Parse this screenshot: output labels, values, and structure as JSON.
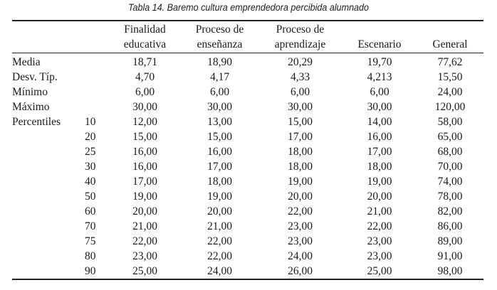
{
  "caption": "Tabla 14. Baremo cultura emprendedora percibida alumnado",
  "columns": [
    {
      "line1": "Finalidad",
      "line2": "educativa"
    },
    {
      "line1": "Proceso de",
      "line2": "enseñanza"
    },
    {
      "line1": "Proceso de",
      "line2": "aprendizaje"
    },
    {
      "line1": "",
      "line2": "Escenario"
    },
    {
      "line1": "",
      "line2": "General"
    }
  ],
  "rows": [
    {
      "label": "Media",
      "pct": "",
      "values": [
        "18,71",
        "18,90",
        "20,29",
        "19,70",
        "77,62"
      ]
    },
    {
      "label": "Desv. Típ.",
      "pct": "",
      "values": [
        "4,70",
        "4,17",
        "4,33",
        "4,213",
        "15,50"
      ]
    },
    {
      "label": "Mínimo",
      "pct": "",
      "values": [
        "6,00",
        "6,00",
        "6,00",
        "6,00",
        "24,00"
      ]
    },
    {
      "label": "Máximo",
      "pct": "",
      "values": [
        "30,00",
        "30,00",
        "30,00",
        "30,00",
        "120,00"
      ]
    },
    {
      "label": "Percentiles",
      "pct": "10",
      "values": [
        "12,00",
        "13,00",
        "15,00",
        "14,00",
        "58,00"
      ]
    },
    {
      "label": "",
      "pct": "20",
      "values": [
        "15,00",
        "15,00",
        "17,00",
        "16,00",
        "65,00"
      ]
    },
    {
      "label": "",
      "pct": "25",
      "values": [
        "16,00",
        "16,00",
        "18,00",
        "17,00",
        "68,00"
      ]
    },
    {
      "label": "",
      "pct": "30",
      "values": [
        "16,00",
        "17,00",
        "18,00",
        "18,00",
        "70,00"
      ]
    },
    {
      "label": "",
      "pct": "40",
      "values": [
        "17,00",
        "18,00",
        "19,00",
        "19,00",
        "74,00"
      ]
    },
    {
      "label": "",
      "pct": "50",
      "values": [
        "19,00",
        "19,00",
        "20,00",
        "20,00",
        "78,00"
      ]
    },
    {
      "label": "",
      "pct": "60",
      "values": [
        "20,00",
        "20,00",
        "22,00",
        "21,00",
        "82,00"
      ]
    },
    {
      "label": "",
      "pct": "70",
      "values": [
        "21,00",
        "21,00",
        "23,00",
        "22,00",
        "86,00"
      ]
    },
    {
      "label": "",
      "pct": "75",
      "values": [
        "22,00",
        "22,00",
        "23,00",
        "23,00",
        "89,00"
      ]
    },
    {
      "label": "",
      "pct": "80",
      "values": [
        "23,00",
        "22,00",
        "24,00",
        "23,00",
        "91,00"
      ]
    },
    {
      "label": "",
      "pct": "90",
      "values": [
        "25,00",
        "24,00",
        "26,00",
        "25,00",
        "98,00"
      ]
    }
  ]
}
